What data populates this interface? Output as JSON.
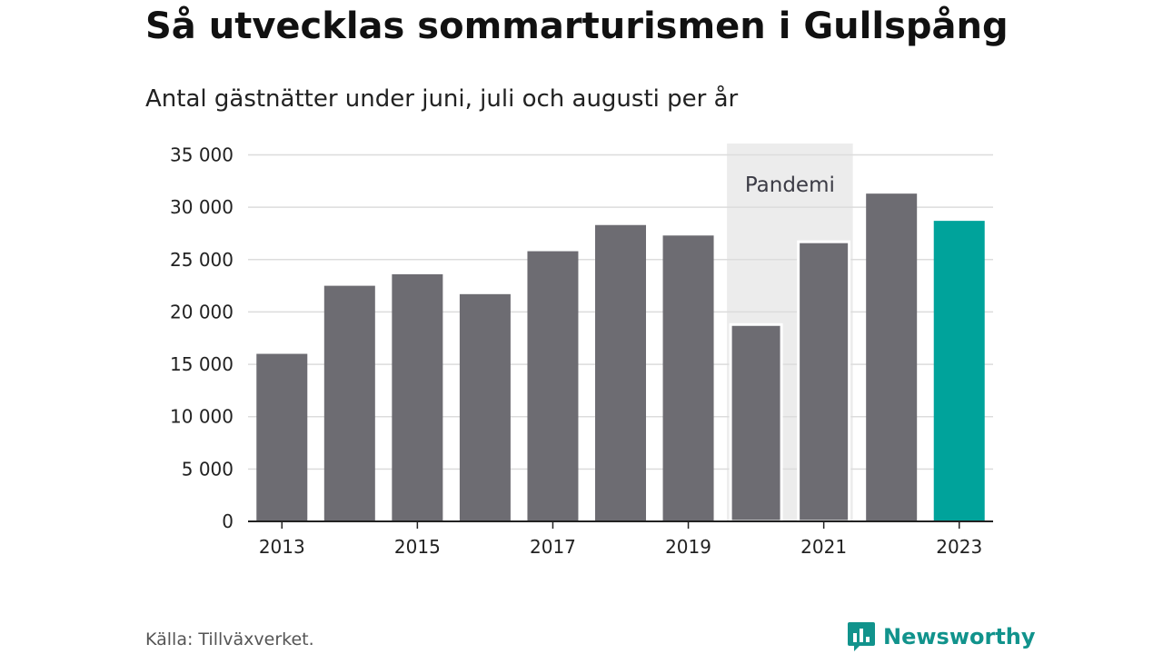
{
  "title": "Så utvecklas sommarturismen i Gullspång",
  "subtitle": "Antal gästnätter under juni, juli och augusti per år",
  "source": "Källa: Tillväxverket.",
  "brand": {
    "name": "Newsworthy",
    "icon": "bar-chart-speech-bubble-icon"
  },
  "colors": {
    "bar": "#6d6c72",
    "highlight": "#00a39b",
    "shade": "#ececec",
    "grid": "#dcdcdc",
    "axis": "#222222",
    "brand": "#11938c"
  },
  "chart_data": {
    "type": "bar",
    "categories": [
      "2013",
      "2014",
      "2015",
      "2016",
      "2017",
      "2018",
      "2019",
      "2020",
      "2021",
      "2022",
      "2023"
    ],
    "values": [
      16000,
      22500,
      23600,
      21700,
      25800,
      28300,
      27300,
      18800,
      26700,
      31300,
      28700
    ],
    "highlight_category": "2023",
    "xlabel": "",
    "ylabel": "",
    "ylim": [
      0,
      35000
    ],
    "yticks": [
      0,
      5000,
      10000,
      15000,
      20000,
      25000,
      30000,
      35000
    ],
    "ytick_labels": [
      "0",
      "5 000",
      "10 000",
      "15 000",
      "20 000",
      "25 000",
      "30 000",
      "35 000"
    ],
    "xtick_labels": [
      "2013",
      "2015",
      "2017",
      "2019",
      "2021",
      "2023"
    ],
    "grid": true,
    "annotation": {
      "label": "Pandemi",
      "from": "2020",
      "to": "2021"
    }
  }
}
